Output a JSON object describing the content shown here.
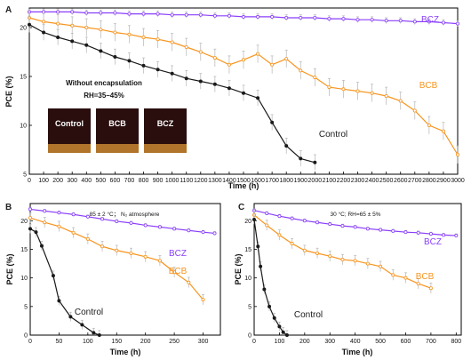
{
  "colors": {
    "BCZ": "#8a3ffc",
    "BCB": "#f7941d",
    "Control": "#1a1a1a",
    "error_bar": "#b5b5b5",
    "inset_bg": "#2a0e0e",
    "inset_bottom": "#b0742a"
  },
  "chart_data": [
    {
      "panel": "A",
      "type": "line",
      "xlabel": "Time (h)",
      "ylabel": "PCE (%)",
      "xlim": [
        0,
        3000
      ],
      "ylim": [
        5,
        22
      ],
      "xticks": [
        0,
        100,
        200,
        300,
        400,
        500,
        600,
        700,
        800,
        900,
        1000,
        1100,
        1200,
        1300,
        1400,
        1500,
        1600,
        1700,
        1800,
        1900,
        2000,
        2100,
        2200,
        2300,
        2400,
        2500,
        2600,
        2700,
        2800,
        2900,
        3000
      ],
      "yticks": [
        5,
        10,
        15,
        20
      ],
      "annotations": [
        "Without encapsulation",
        "RH=35–45%"
      ],
      "inset_labels": [
        "Control",
        "BCB",
        "BCZ"
      ],
      "series": [
        {
          "name": "BCZ",
          "x": [
            0,
            100,
            200,
            300,
            400,
            500,
            600,
            700,
            800,
            900,
            1000,
            1100,
            1200,
            1300,
            1400,
            1500,
            1600,
            1700,
            1800,
            1900,
            2000,
            2100,
            2200,
            2300,
            2400,
            2500,
            2600,
            2700,
            2800,
            2900,
            3000
          ],
          "y": [
            21.6,
            21.6,
            21.6,
            21.6,
            21.5,
            21.5,
            21.5,
            21.4,
            21.4,
            21.4,
            21.3,
            21.3,
            21.3,
            21.2,
            21.2,
            21.1,
            21.1,
            21.1,
            21.0,
            21.0,
            21.0,
            20.9,
            20.9,
            20.8,
            20.8,
            20.7,
            20.7,
            20.6,
            20.6,
            20.5,
            20.4
          ]
        },
        {
          "name": "BCB",
          "x": [
            0,
            100,
            200,
            300,
            400,
            500,
            600,
            700,
            800,
            900,
            1000,
            1100,
            1200,
            1300,
            1400,
            1500,
            1600,
            1700,
            1800,
            1900,
            2000,
            2100,
            2200,
            2300,
            2400,
            2500,
            2600,
            2700,
            2800,
            2900,
            3000
          ],
          "y": [
            21.0,
            20.6,
            20.4,
            20.2,
            20.0,
            19.8,
            19.5,
            19.3,
            19.0,
            18.8,
            18.5,
            18.0,
            17.5,
            16.9,
            16.2,
            16.7,
            17.3,
            16.2,
            16.8,
            15.6,
            14.9,
            13.9,
            13.7,
            13.5,
            13.3,
            13.0,
            12.5,
            11.5,
            10.0,
            9.4,
            7.0
          ]
        },
        {
          "name": "Control",
          "x": [
            0,
            100,
            200,
            300,
            400,
            500,
            600,
            700,
            800,
            900,
            1000,
            1100,
            1200,
            1300,
            1400,
            1500,
            1600,
            1700,
            1800,
            1900,
            2000
          ],
          "y": [
            20.3,
            19.5,
            19.0,
            18.6,
            18.2,
            17.6,
            17.0,
            16.6,
            16.1,
            15.7,
            15.3,
            14.8,
            14.5,
            14.2,
            13.8,
            13.3,
            12.8,
            10.3,
            7.9,
            6.6,
            6.2
          ]
        }
      ]
    },
    {
      "panel": "B",
      "type": "line",
      "xlabel": "Time (h)",
      "ylabel": "PCE (%)",
      "xlim": [
        0,
        330
      ],
      "ylim": [
        0,
        23
      ],
      "xticks": [
        0,
        50,
        100,
        150,
        200,
        250,
        300
      ],
      "yticks": [
        0,
        5,
        10,
        15,
        20
      ],
      "annotations": [
        "85 ± 2 °C； N₂ atmosphere"
      ],
      "series": [
        {
          "name": "BCZ",
          "x": [
            0,
            25,
            50,
            75,
            100,
            125,
            150,
            175,
            200,
            225,
            250,
            275,
            300,
            320
          ],
          "y": [
            22.0,
            21.7,
            21.4,
            21.1,
            20.7,
            20.3,
            19.9,
            19.6,
            19.2,
            18.9,
            18.6,
            18.3,
            18.0,
            17.8
          ]
        },
        {
          "name": "BCB",
          "x": [
            0,
            25,
            50,
            75,
            100,
            125,
            150,
            175,
            200,
            225,
            250,
            275,
            300
          ],
          "y": [
            20.5,
            19.7,
            19.0,
            17.9,
            16.8,
            15.5,
            14.8,
            14.3,
            13.7,
            13.0,
            11.0,
            9.2,
            6.2
          ]
        },
        {
          "name": "Control",
          "x": [
            0,
            10,
            20,
            40,
            50,
            70,
            90,
            110,
            120
          ],
          "y": [
            18.6,
            18.0,
            15.6,
            10.4,
            6.0,
            3.2,
            1.8,
            0.4,
            0.0
          ]
        }
      ]
    },
    {
      "panel": "C",
      "type": "line",
      "xlabel": "Time (h)",
      "ylabel": "PCE (%)",
      "xlim": [
        0,
        820
      ],
      "ylim": [
        0,
        23
      ],
      "xticks": [
        0,
        100,
        200,
        300,
        400,
        500,
        600,
        700,
        800
      ],
      "yticks": [
        0,
        5,
        10,
        15,
        20
      ],
      "annotations": [
        "30 °C; RH=65 ± 5%"
      ],
      "series": [
        {
          "name": "BCZ",
          "x": [
            0,
            50,
            100,
            150,
            200,
            250,
            300,
            350,
            400,
            450,
            500,
            550,
            600,
            650,
            700,
            750,
            800
          ],
          "y": [
            21.8,
            21.3,
            20.8,
            20.4,
            20.0,
            19.7,
            19.4,
            19.1,
            18.9,
            18.6,
            18.4,
            18.2,
            18.0,
            17.9,
            17.7,
            17.5,
            17.4
          ]
        },
        {
          "name": "BCB",
          "x": [
            0,
            50,
            100,
            150,
            200,
            250,
            300,
            350,
            400,
            450,
            500,
            550,
            600,
            650,
            700
          ],
          "y": [
            21.0,
            19.2,
            17.5,
            16.0,
            14.8,
            14.3,
            13.8,
            13.2,
            13.0,
            12.5,
            12.0,
            10.5,
            10.0,
            9.0,
            8.2
          ]
        },
        {
          "name": "Control",
          "x": [
            0,
            15,
            25,
            40,
            60,
            80,
            100,
            115,
            130
          ],
          "y": [
            20.2,
            15.5,
            12.0,
            8.0,
            5.0,
            3.0,
            1.5,
            0.5,
            0.0
          ]
        }
      ]
    }
  ]
}
